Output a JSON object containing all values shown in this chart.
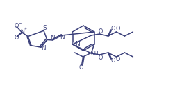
{
  "bg_color": "#ffffff",
  "bond_color": "#3a3f7a",
  "text_color": "#3a3f7a",
  "figsize": [
    2.75,
    1.27
  ],
  "dpi": 100,
  "lw": 1.1,
  "fs": 5.8,
  "xlim": [
    0,
    275
  ],
  "ylim": [
    0,
    127
  ]
}
